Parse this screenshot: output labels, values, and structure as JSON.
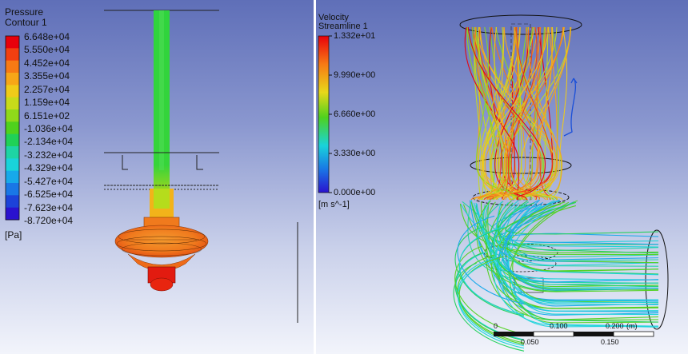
{
  "pressure_legend": {
    "title": "Pressure",
    "subtitle": "Contour 1",
    "unit": "[Pa]",
    "labels": [
      "6.648e+04",
      "5.550e+04",
      "4.452e+04",
      "3.355e+04",
      "2.257e+04",
      "1.159e+04",
      "6.151e+02",
      "-1.036e+04",
      "-2.134e+04",
      "-3.232e+04",
      "-4.329e+04",
      "-5.427e+04",
      "-6.525e+04",
      "-7.623e+04",
      "-8.720e+04"
    ],
    "colors": [
      "#e8000b",
      "#f23f10",
      "#f77a14",
      "#f7a617",
      "#f0cb19",
      "#c8db1a",
      "#8fd91a",
      "#4fd21d",
      "#20d157",
      "#1ed4a4",
      "#19d3da",
      "#17a9ea",
      "#1977e6",
      "#1c42d9",
      "#2a12cf"
    ]
  },
  "velocity_legend": {
    "title": "Velocity",
    "subtitle": "Streamline 1",
    "unit": "[m s^-1]",
    "labels": [
      "1.332e+01",
      "9.990e+00",
      "6.660e+00",
      "3.330e+00",
      "0.000e+00"
    ]
  },
  "scale_bar": {
    "top_labels": [
      "0",
      "0.100",
      "0.200"
    ],
    "unit": "(m)",
    "bottom_labels": [
      "0.050",
      "0.150"
    ]
  }
}
